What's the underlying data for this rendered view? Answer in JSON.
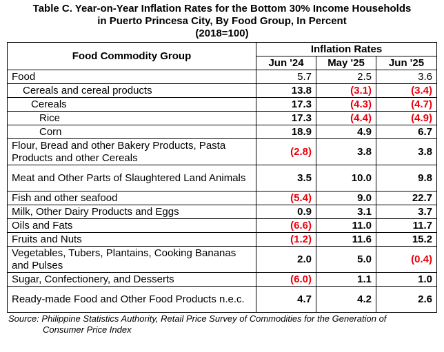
{
  "title": {
    "line1": "Table C. Year-on-Year Inflation Rates for the Bottom 30% Income Households",
    "line2": "in Puerto Princesa City, By Food Group, In Percent",
    "line3": "(2018=100)"
  },
  "header": {
    "group_label": "Food Commodity Group",
    "rates_label": "Inflation Rates",
    "columns": [
      "Jun '24",
      "May '25",
      "Jun '25"
    ]
  },
  "rows": [
    {
      "label": "Food",
      "values": [
        "5.7",
        "2.5",
        "3.6"
      ]
    },
    {
      "label": "Cereals and cereal products",
      "values": [
        "13.8",
        "(3.1)",
        "(3.4)"
      ]
    },
    {
      "label": "Cereals",
      "values": [
        "17.3",
        "(4.3)",
        "(4.7)"
      ]
    },
    {
      "label": "Rice",
      "values": [
        "17.3",
        "(4.4)",
        "(4.9)"
      ]
    },
    {
      "label": "Corn",
      "values": [
        "18.9",
        "4.9",
        "6.7"
      ]
    },
    {
      "label": "Flour, Bread and other Bakery Products, Pasta Products and other Cereals",
      "values": [
        "(2.8)",
        "3.8",
        "3.8"
      ]
    },
    {
      "label": "Meat and Other Parts of Slaughtered Land Animals",
      "values": [
        "3.5",
        "10.0",
        "9.8"
      ]
    },
    {
      "label": "Fish and other seafood",
      "values": [
        "(5.4)",
        "9.0",
        "22.7"
      ]
    },
    {
      "label": "Milk, Other Dairy Products and Eggs",
      "values": [
        "0.9",
        "3.1",
        "3.7"
      ]
    },
    {
      "label": "Oils and Fats",
      "values": [
        "(6.6)",
        "11.0",
        "11.7"
      ]
    },
    {
      "label": "Fruits and Nuts",
      "values": [
        "(1.2)",
        "11.6",
        "15.2"
      ]
    },
    {
      "label": "Vegetables, Tubers, Plantains, Cooking Bananas and Pulses",
      "values": [
        "2.0",
        "5.0",
        "(0.4)"
      ]
    },
    {
      "label": "Sugar, Confectionery, and Desserts",
      "values": [
        "(6.0)",
        "1.1",
        "1.0"
      ]
    },
    {
      "label": "Ready-made Food and Other Food Products n.e.c.",
      "values": [
        "4.7",
        "4.2",
        "2.6"
      ]
    }
  ],
  "source": {
    "line1": "Source: Philippine Statistics Authority, Retail Price Survey of Commodities for the Generation of",
    "line2": "Consumer Price Index"
  },
  "colors": {
    "negative": "#e8000b"
  }
}
